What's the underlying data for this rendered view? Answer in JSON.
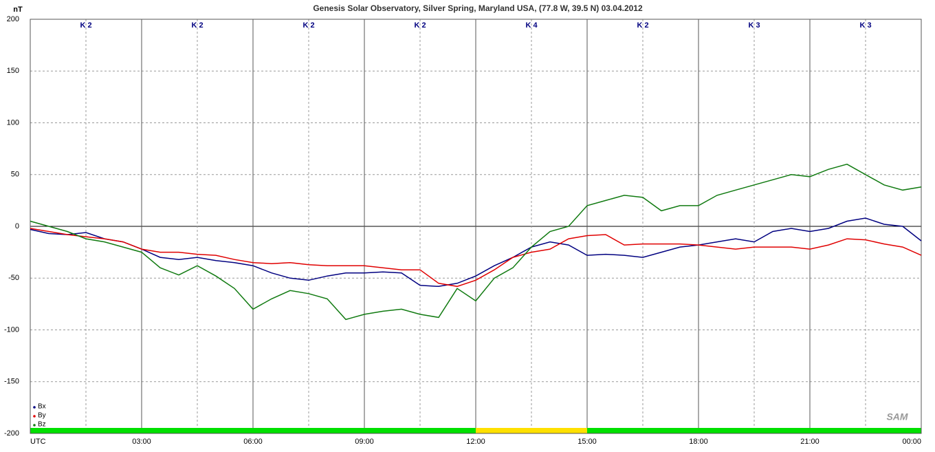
{
  "chart_data": {
    "type": "line",
    "title": "Genesis Solar Observatory, Silver Spring, Maryland USA, (77.8 W, 39.5 N)  03.04.2012",
    "y_label": "nT",
    "logo": "SAM",
    "x": [
      0,
      0.5,
      1,
      1.5,
      2,
      2.5,
      3,
      3.5,
      4,
      4.5,
      5,
      5.5,
      6,
      6.5,
      7,
      7.5,
      8,
      8.5,
      9,
      9.5,
      10,
      10.5,
      11,
      11.5,
      12,
      12.5,
      13,
      13.5,
      14,
      14.5,
      15,
      15.5,
      16,
      16.5,
      17,
      17.5,
      18,
      18.5,
      19,
      19.5,
      20,
      20.5,
      21,
      21.5,
      22,
      22.5,
      23,
      23.5,
      24
    ],
    "series": [
      {
        "name": "Bx",
        "color": "#000080",
        "values": [
          -3,
          -7,
          -8,
          -6,
          -12,
          -15,
          -22,
          -30,
          -32,
          -30,
          -33,
          -35,
          -38,
          -45,
          -50,
          -52,
          -48,
          -45,
          -45,
          -44,
          -45,
          -57,
          -58,
          -55,
          -48,
          -38,
          -30,
          -20,
          -15,
          -18,
          -28,
          -27,
          -28,
          -30,
          -25,
          -20,
          -18,
          -15,
          -12,
          -15,
          -5,
          -2,
          -5,
          -2,
          5,
          8,
          2,
          0,
          -14
        ]
      },
      {
        "name": "By",
        "color": "#e00000",
        "values": [
          -2,
          -5,
          -8,
          -10,
          -12,
          -15,
          -22,
          -25,
          -25,
          -27,
          -28,
          -32,
          -35,
          -36,
          -35,
          -37,
          -38,
          -38,
          -38,
          -40,
          -42,
          -42,
          -55,
          -58,
          -52,
          -42,
          -30,
          -25,
          -22,
          -12,
          -9,
          -8,
          -18,
          -17,
          -17,
          -17,
          -18,
          -20,
          -22,
          -20,
          -20,
          -20,
          -22,
          -18,
          -12,
          -13,
          -17,
          -20,
          -28
        ]
      },
      {
        "name": "Bz",
        "color": "#107a10",
        "values": [
          5,
          0,
          -5,
          -12,
          -15,
          -20,
          -25,
          -40,
          -47,
          -38,
          -48,
          -60,
          -80,
          -70,
          -62,
          -65,
          -70,
          -90,
          -85,
          -82,
          -80,
          -85,
          -88,
          -60,
          -72,
          -50,
          -40,
          -20,
          -5,
          0,
          20,
          25,
          30,
          28,
          15,
          20,
          20,
          30,
          35,
          40,
          45,
          50,
          48,
          55,
          60,
          50,
          40,
          35,
          38
        ]
      }
    ],
    "xlim": [
      0,
      24
    ],
    "xticks": [
      {
        "value": 0,
        "label": "UTC"
      },
      {
        "value": 3,
        "label": "03:00"
      },
      {
        "value": 6,
        "label": "06:00"
      },
      {
        "value": 9,
        "label": "09:00"
      },
      {
        "value": 12,
        "label": "12:00"
      },
      {
        "value": 15,
        "label": "15:00"
      },
      {
        "value": 18,
        "label": "18:00"
      },
      {
        "value": 21,
        "label": "21:00"
      },
      {
        "value": 24,
        "label": "00:00"
      }
    ],
    "ylim": [
      -200,
      200
    ],
    "yticks": [
      -200,
      -150,
      -100,
      -50,
      0,
      50,
      100,
      150,
      200
    ],
    "grid": true,
    "k_indices": [
      "K 2",
      "K 2",
      "K 2",
      "K 2",
      "K 4",
      "K 2",
      "K 3",
      "K 3"
    ],
    "k_colors": [
      "#00e000",
      "#00e000",
      "#00e000",
      "#00e000",
      "#ffe000",
      "#00e000",
      "#00e000",
      "#00e000"
    ],
    "legend": "lower left"
  }
}
